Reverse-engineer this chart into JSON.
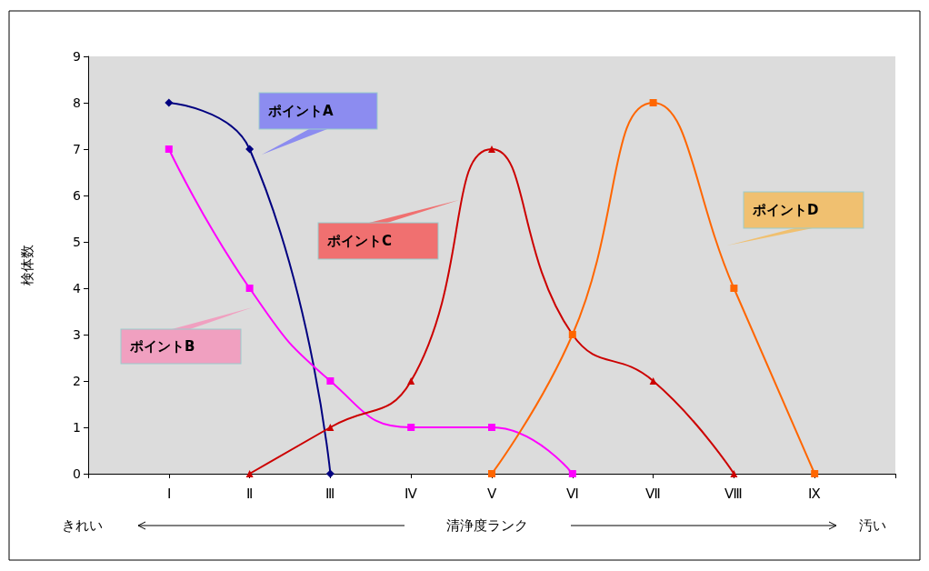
{
  "chart_data": {
    "type": "line",
    "xlabel": "清浄度ランク",
    "ylabel": "検体数",
    "categories": [
      "Ⅰ",
      "Ⅱ",
      "Ⅲ",
      "Ⅳ",
      "Ⅴ",
      "Ⅵ",
      "Ⅶ",
      "Ⅷ",
      "Ⅸ"
    ],
    "series": [
      {
        "name": "ポイントA",
        "color": "#000080",
        "marker": "diamond",
        "values": [
          8,
          7,
          0,
          null,
          null,
          null,
          null,
          null,
          null
        ]
      },
      {
        "name": "ポイントB",
        "color": "#ff00ff",
        "marker": "square",
        "values": [
          7,
          4,
          2,
          1,
          1,
          0,
          null,
          null,
          null
        ]
      },
      {
        "name": "ポイントC",
        "color": "#cc0000",
        "marker": "triangle",
        "values": [
          null,
          0,
          1,
          2,
          7,
          3,
          2,
          0,
          null
        ]
      },
      {
        "name": "ポイントD",
        "color": "#ff6600",
        "marker": "square",
        "values": [
          null,
          null,
          null,
          null,
          0,
          3,
          8,
          4,
          0
        ]
      }
    ],
    "ylim": [
      0,
      9
    ],
    "yticks": [
      0,
      1,
      2,
      3,
      4,
      5,
      6,
      7,
      8,
      9
    ],
    "grid": false,
    "legend": false,
    "annotations": [
      "きれい",
      "汚い"
    ]
  }
}
